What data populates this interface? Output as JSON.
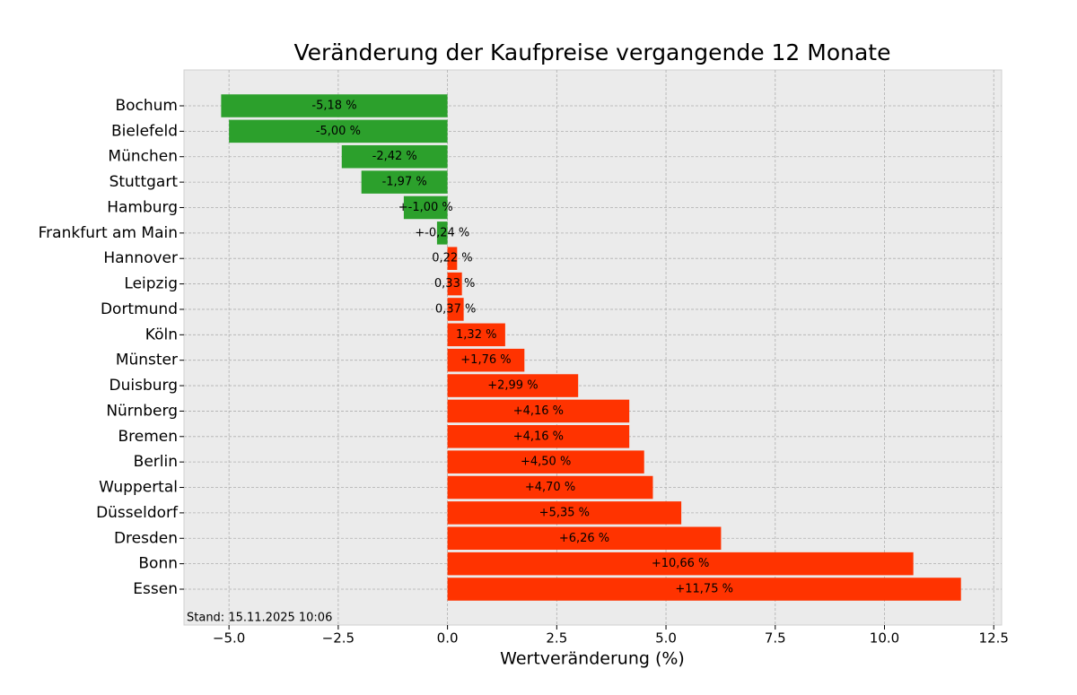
{
  "chart_data": {
    "type": "barh",
    "title": "Veränderung der Kaufpreise vergangende 12 Monate",
    "x_label": "Wertveränderung (%)",
    "annotation": "Stand: 15.11.2025 10:06",
    "categories": [
      "Bochum",
      "Bielefeld",
      "München",
      "Stuttgart",
      "Hamburg",
      "Frankfurt am Main",
      "Hannover",
      "Leipzig",
      "Dortmund",
      "Köln",
      "Münster",
      "Duisburg",
      "Nürnberg",
      "Bremen",
      "Berlin",
      "Wuppertal",
      "Düsseldorf",
      "Dresden",
      "Bonn",
      "Essen"
    ],
    "values": [
      -5.18,
      -5.0,
      -2.42,
      -1.97,
      -1.0,
      -0.24,
      0.22,
      0.33,
      0.37,
      1.32,
      1.76,
      2.99,
      4.16,
      4.16,
      4.5,
      4.7,
      5.35,
      6.26,
      10.66,
      11.75
    ],
    "value_labels": [
      "-5,18 %",
      "-5,00 %",
      "-2,42 %",
      "-1,97 %",
      "+-1,00 %",
      "+-0,24 %",
      "0,22 %",
      "0,33 %",
      "0,37 %",
      "1,32 %",
      "+1,76 %",
      "+2,99 %",
      "+4,16 %",
      "+4,16 %",
      "+4,50 %",
      "+4,70 %",
      "+5,35 %",
      "+6,26 %",
      "+10,66 %",
      "+11,75 %"
    ],
    "colors": [
      "#2ca02c",
      "#2ca02c",
      "#2ca02c",
      "#2ca02c",
      "#2ca02c",
      "#2ca02c",
      "#ff3300",
      "#ff3300",
      "#ff3300",
      "#ff3300",
      "#ff3300",
      "#ff3300",
      "#ff3300",
      "#ff3300",
      "#ff3300",
      "#ff3300",
      "#ff3300",
      "#ff3300",
      "#ff3300",
      "#ff3300"
    ],
    "xlim": [
      -6.03,
      12.68
    ],
    "xticks": [
      {
        "value": -5,
        "label": "−5.0"
      },
      {
        "value": -2.5,
        "label": "−2.5"
      },
      {
        "value": 0,
        "label": "0.0"
      },
      2.5,
      {
        "value": 5,
        "label": "5.0"
      },
      7.5,
      {
        "value": 10,
        "label": "10.0"
      },
      12.5
    ],
    "grid": true
  }
}
